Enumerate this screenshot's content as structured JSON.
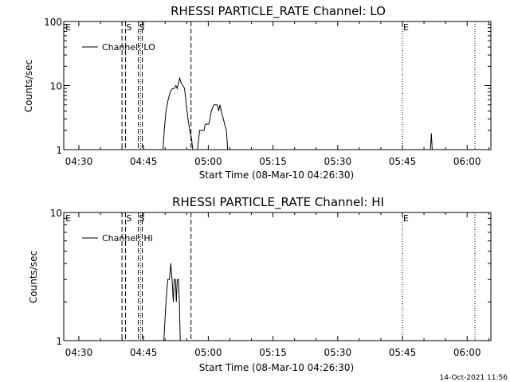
{
  "chart_data": [
    {
      "type": "line",
      "title": "RHESSI PARTICLE_RATE Channel: LO",
      "xlabel": "Start Time (08-Mar-10 04:26:30)",
      "ylabel": "Counts/sec",
      "yscale": "log",
      "ylim": [
        1,
        100
      ],
      "xlim_minutes": [
        0,
        99
      ],
      "x_unit": "minutes after 04:26:30",
      "y_ticks": [
        {
          "value": 1,
          "label": "1"
        },
        {
          "value": 10,
          "label": "10"
        },
        {
          "value": 100,
          "label": "100"
        }
      ],
      "x_ticks": [
        {
          "value": 3.5,
          "label": "04:30"
        },
        {
          "value": 18.5,
          "label": "04:45"
        },
        {
          "value": 33.5,
          "label": "05:00"
        },
        {
          "value": 48.5,
          "label": "05:15"
        },
        {
          "value": 63.5,
          "label": "05:30"
        },
        {
          "value": 78.5,
          "label": "05:45"
        },
        {
          "value": 93.5,
          "label": "06:00"
        }
      ],
      "legend": {
        "label": "Channel: LO",
        "position": "top-left"
      },
      "markers": [
        {
          "x": 0.2,
          "style": "none",
          "label": "E"
        },
        {
          "x": 13.5,
          "style": "dashed",
          "label": ""
        },
        {
          "x": 14.3,
          "style": "dashed",
          "label": "S"
        },
        {
          "x": 17.3,
          "style": "dashed",
          "label": "S"
        },
        {
          "x": 17.8,
          "style": "dotted",
          "label": ""
        },
        {
          "x": 18.2,
          "style": "dashed",
          "label": ""
        },
        {
          "x": 29.5,
          "style": "dashed",
          "label": ""
        },
        {
          "x": 78.5,
          "style": "dotted",
          "label": "E"
        },
        {
          "x": 95.3,
          "style": "dotted",
          "label": ""
        }
      ],
      "series": [
        {
          "name": "Channel: LO",
          "points": [
            [
              23.0,
              1
            ],
            [
              23.3,
              2
            ],
            [
              23.7,
              4
            ],
            [
              24.2,
              6
            ],
            [
              24.7,
              8
            ],
            [
              25.2,
              9
            ],
            [
              25.6,
              9
            ],
            [
              26.0,
              10
            ],
            [
              26.3,
              9
            ],
            [
              26.6,
              11
            ],
            [
              26.9,
              13
            ],
            [
              27.2,
              11
            ],
            [
              27.6,
              10
            ],
            [
              28.0,
              9
            ],
            [
              28.4,
              5
            ],
            [
              28.8,
              3
            ],
            [
              29.2,
              2
            ],
            [
              29.6,
              1.5
            ],
            [
              29.9,
              1
            ],
            [
              31.0,
              1
            ],
            [
              31.5,
              2
            ],
            [
              32.5,
              2
            ],
            [
              32.8,
              2.5
            ],
            [
              33.6,
              2.5
            ],
            [
              33.9,
              3
            ],
            [
              34.2,
              4
            ],
            [
              34.8,
              5
            ],
            [
              35.6,
              5
            ],
            [
              35.9,
              4
            ],
            [
              36.2,
              5
            ],
            [
              36.5,
              4
            ],
            [
              37.0,
              3
            ],
            [
              37.3,
              2.5
            ],
            [
              37.7,
              2
            ],
            [
              38.0,
              1
            ],
            [
              85.0,
              1
            ],
            [
              85.2,
              1.8
            ],
            [
              85.4,
              1
            ]
          ]
        }
      ]
    },
    {
      "type": "line",
      "title": "RHESSI PARTICLE_RATE Channel: HI",
      "xlabel": "Start Time (08-Mar-10 04:26:30)",
      "ylabel": "Counts/sec",
      "yscale": "log",
      "ylim": [
        1,
        10
      ],
      "xlim_minutes": [
        0,
        99
      ],
      "x_unit": "minutes after 04:26:30",
      "y_ticks": [
        {
          "value": 1,
          "label": "1"
        },
        {
          "value": 10,
          "label": "10"
        }
      ],
      "x_ticks": [
        {
          "value": 3.5,
          "label": "04:30"
        },
        {
          "value": 18.5,
          "label": "04:45"
        },
        {
          "value": 33.5,
          "label": "05:00"
        },
        {
          "value": 48.5,
          "label": "05:15"
        },
        {
          "value": 63.5,
          "label": "05:30"
        },
        {
          "value": 78.5,
          "label": "05:45"
        },
        {
          "value": 93.5,
          "label": "06:00"
        }
      ],
      "legend": {
        "label": "Channel: HI",
        "position": "top-left"
      },
      "markers": [
        {
          "x": 0.2,
          "style": "none",
          "label": "E"
        },
        {
          "x": 13.5,
          "style": "dashed",
          "label": ""
        },
        {
          "x": 14.3,
          "style": "dashed",
          "label": "S"
        },
        {
          "x": 17.3,
          "style": "dashed",
          "label": "S"
        },
        {
          "x": 17.8,
          "style": "dotted",
          "label": ""
        },
        {
          "x": 18.2,
          "style": "dashed",
          "label": ""
        },
        {
          "x": 29.5,
          "style": "dashed",
          "label": ""
        },
        {
          "x": 78.5,
          "style": "dotted",
          "label": "E"
        },
        {
          "x": 95.3,
          "style": "dotted",
          "label": ""
        }
      ],
      "series": [
        {
          "name": "Channel: HI",
          "points": [
            [
              23.2,
              1
            ],
            [
              23.7,
              2
            ],
            [
              24.1,
              3
            ],
            [
              24.5,
              3
            ],
            [
              24.8,
              4
            ],
            [
              25.1,
              3
            ],
            [
              25.4,
              2
            ],
            [
              25.6,
              3
            ],
            [
              25.9,
              3
            ],
            [
              26.1,
              2
            ],
            [
              26.3,
              3
            ],
            [
              26.6,
              3
            ],
            [
              26.8,
              2
            ],
            [
              27.0,
              1
            ]
          ]
        }
      ]
    }
  ],
  "footer": {
    "timestamp": "14-Oct-2021 11:56"
  }
}
